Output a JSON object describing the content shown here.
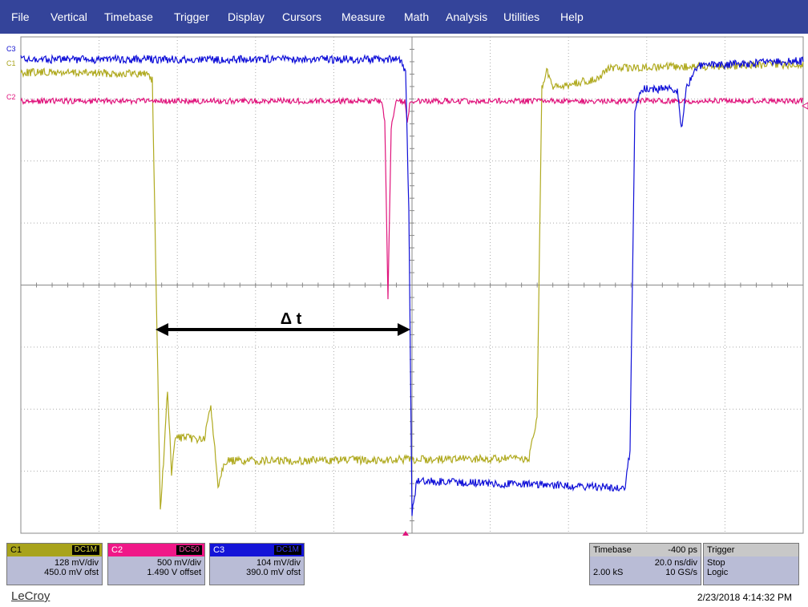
{
  "menu": [
    "File",
    "Vertical",
    "Timebase",
    "Trigger",
    "Display",
    "Cursors",
    "Measure",
    "Math",
    "Analysis",
    "Utilities",
    "Help"
  ],
  "trace_labels": [
    "C3",
    "C1",
    "C2"
  ],
  "annotation": "Δ t",
  "channels": [
    {
      "name": "C1",
      "coupling": "DC1M",
      "scale": "128 mV/div",
      "offset": "450.0 mV ofst"
    },
    {
      "name": "C2",
      "coupling": "DC50",
      "scale": "500 mV/div",
      "offset": "1.490 V offset"
    },
    {
      "name": "C3",
      "coupling": "DC1M",
      "scale": "104 mV/div",
      "offset": "390.0 mV ofst"
    }
  ],
  "timebase": {
    "title": "Timebase",
    "delay": "-400 ps",
    "scale": "20.0 ns/div",
    "samples": "2.00 kS",
    "rate": "10 GS/s"
  },
  "trigger": {
    "title": "Trigger",
    "state": "Stop",
    "mode": "Logic"
  },
  "brand": "LeCroy",
  "timestamp": "2/23/2018 4:14:32 PM"
}
